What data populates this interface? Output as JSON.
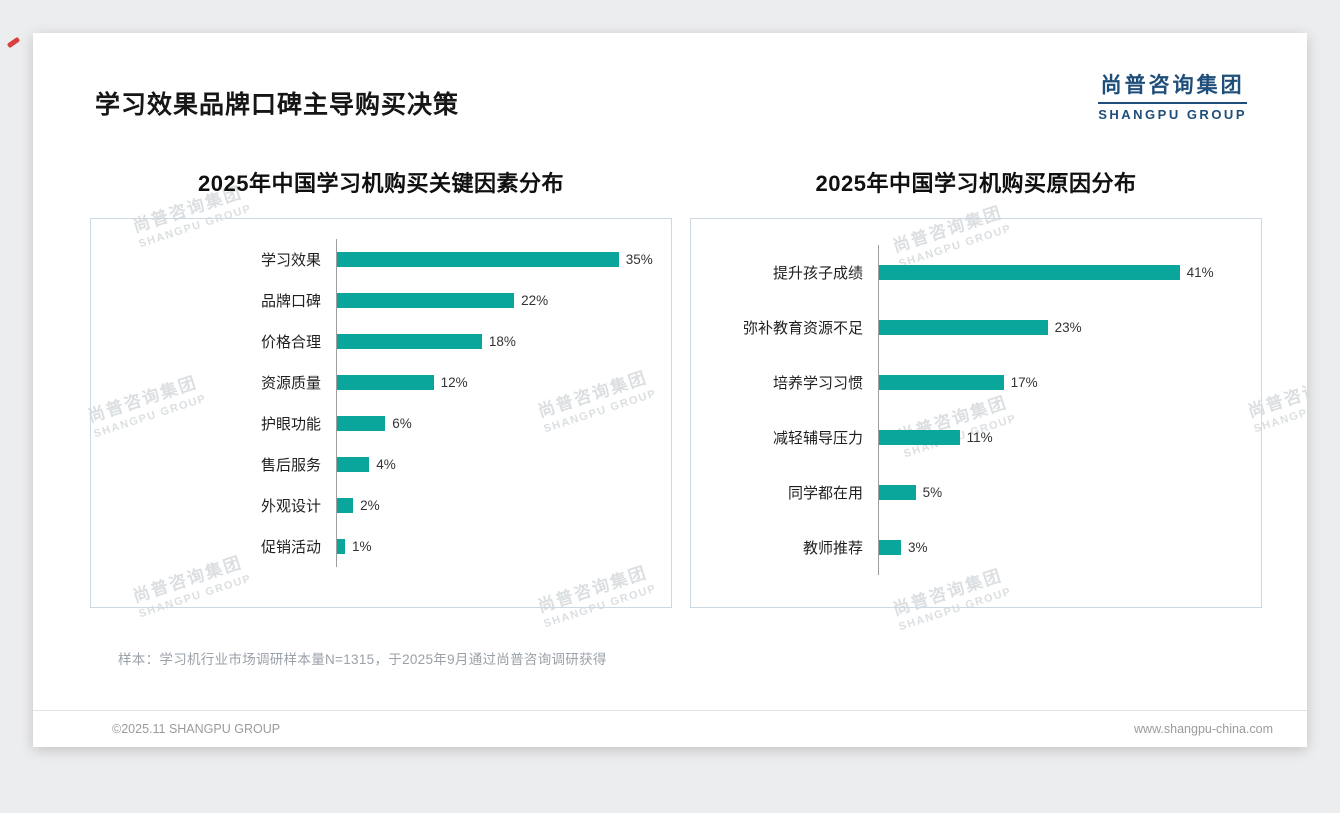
{
  "page": {
    "title": "学习效果品牌口碑主导购买决策",
    "logo": {
      "cn": "尚普咨询集团",
      "en": "SHANGPU GROUP"
    },
    "watermark": {
      "cn": "尚普咨询集团",
      "en": "SHANGPU GROUP"
    },
    "note": "样本：学习机行业市场调研样本量N=1315，于2025年9月通过尚普咨询调研获得",
    "footer_left": "©2025.11 SHANGPU GROUP",
    "footer_right": "www.shangpu-china.com"
  },
  "colors": {
    "bar": "#0aa69b",
    "logo_blue": "#1e4e79"
  },
  "chart_data": [
    {
      "type": "bar",
      "orientation": "horizontal",
      "title": "2025年中国学习机购买关键因素分布",
      "categories": [
        "学习效果",
        "品牌口碑",
        "价格合理",
        "资源质量",
        "护眼功能",
        "售后服务",
        "外观设计",
        "促销活动"
      ],
      "values": [
        35,
        22,
        18,
        12,
        6,
        4,
        2,
        1
      ],
      "value_suffix": "%",
      "xlim": [
        0,
        40
      ],
      "grid": false,
      "legend": false
    },
    {
      "type": "bar",
      "orientation": "horizontal",
      "title": "2025年中国学习机购买原因分布",
      "categories": [
        "提升孩子成绩",
        "弥补教育资源不足",
        "培养学习习惯",
        "减轻辅导压力",
        "同学都在用",
        "教师推荐"
      ],
      "values": [
        41,
        23,
        17,
        11,
        5,
        3
      ],
      "value_suffix": "%",
      "xlim": [
        0,
        45
      ],
      "grid": false,
      "legend": false
    }
  ]
}
